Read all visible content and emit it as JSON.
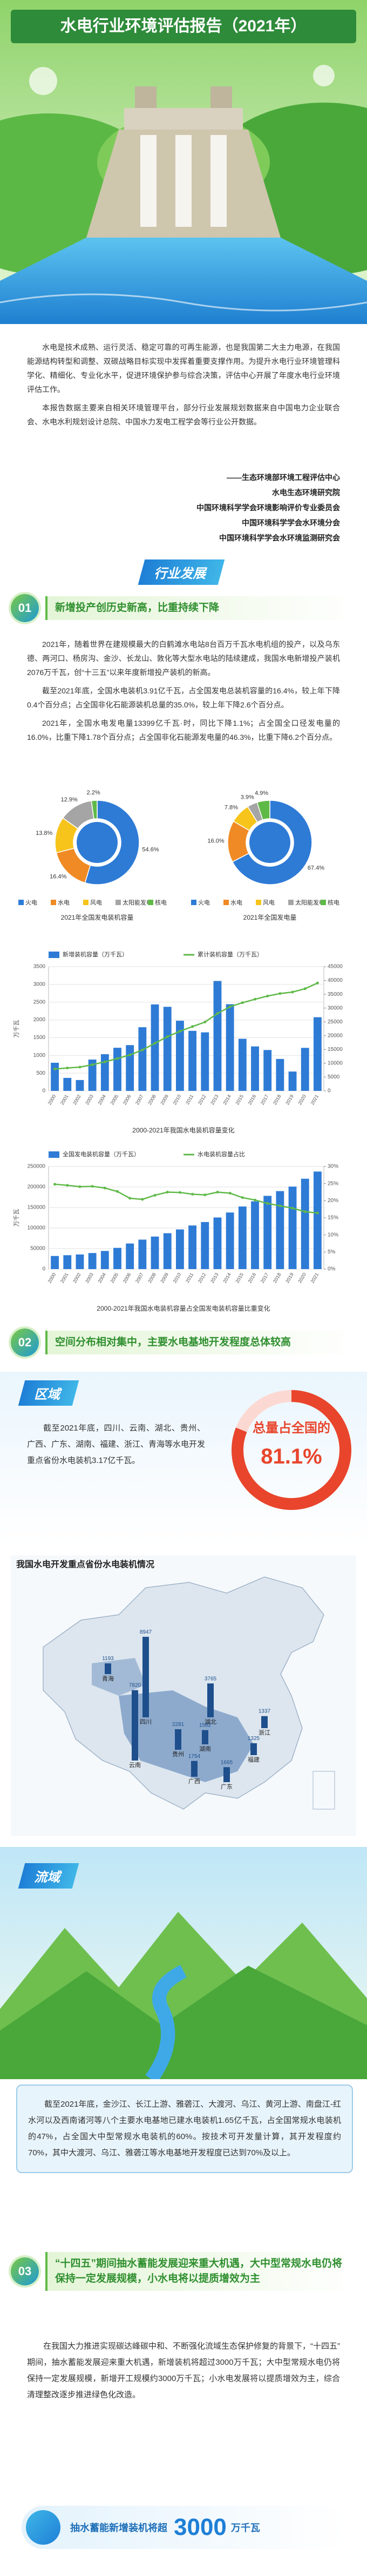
{
  "header": {
    "title": "水电行业环境评估报告（2021年）"
  },
  "intro": {
    "paragraphs": [
      "水电是技术成熟、运行灵活、稳定可靠的可再生能源，也是我国第二大主力电源，在我国能源结构转型和调整、双碳战略目标实现中发挥着重要支撑作用。为提升水电行业环境管理科学化、精细化、专业化水平，促进环境保护参与综合决策，评估中心开展了年度水电行业环境评估工作。",
      "本报告数据主要来自相关环境管理平台，部分行业发展规划数据来自中国电力企业联合会、水电水利规划设计总院、中国水力发电工程学会等行业公开数据。"
    ],
    "authors": [
      "——生态环境部环境工程评估中心",
      "水电生态环境研究院",
      "中国环境科学学会环境影响评价专业委员会",
      "中国环境科学学会水环境分会",
      "中国环境科学学会水环境监测研究会"
    ]
  },
  "section1": {
    "title": "行业发展",
    "heading": {
      "number": "01",
      "text": "新增投产创历史新高，比重持续下降"
    },
    "paragraphs": [
      "2021年，随着世界在建规模最大的白鹤滩水电站8台百万千瓦水电机组的投产，以及乌东德、两河口、杨房沟、金沙、长龙山、敦化等大型水电站的陆续建成，我国水电新增投产装机2076万千瓦，创“十三五”以来年度新增投产装机的新高。",
      "截至2021年底，全国水电装机3.91亿千瓦，占全国发电总装机容量的16.4%，较上年下降0.4个百分点；占全国非化石能源装机总量的35.0%，较上年下降2.6个百分点。",
      "2021年，全国水电发电量13399亿千瓦·时，同比下降1.1%；占全国全口径发电量的16.0%，比重下降1.78个百分点；占全国非化石能源发电量的46.3%，比重下降6.2个百分点。"
    ]
  },
  "chart_data": [
    {
      "type": "donut",
      "title": "2021年全国发电装机容量",
      "categories": [
        "火电",
        "水电",
        "风电",
        "太阳能发电",
        "核电"
      ],
      "values": [
        54.6,
        16.4,
        13.8,
        12.9,
        2.2
      ],
      "value_labels": [
        "54.6%",
        "16.4%",
        "13.8%",
        "12.9%",
        "2.2%"
      ],
      "colors": [
        "#2e7bd6",
        "#f08a24",
        "#f6c41b",
        "#a5a5a5",
        "#5fb947"
      ]
    },
    {
      "type": "donut",
      "title": "2021年全国发电量",
      "categories": [
        "火电",
        "水电",
        "风电",
        "太阳能发电",
        "核电"
      ],
      "values": [
        67.4,
        16.0,
        7.8,
        3.9,
        4.9
      ],
      "value_labels": [
        "67.4%",
        "16.0%",
        "7.8%",
        "3.9%",
        "4.9%"
      ],
      "colors": [
        "#2e7bd6",
        "#f08a24",
        "#f6c41b",
        "#a5a5a5",
        "#5fb947"
      ]
    },
    {
      "type": "bar",
      "title": "2000-2021年我国水电装机容量变化",
      "ylabel": "万千瓦",
      "categories": [
        "2000",
        "2001",
        "2002",
        "2003",
        "2004",
        "2005",
        "2006",
        "2007",
        "2008",
        "2009",
        "2010",
        "2011",
        "2012",
        "2013",
        "2014",
        "2015",
        "2016",
        "2017",
        "2018",
        "2019",
        "2020",
        "2021"
      ],
      "series": [
        {
          "name": "新增装机容量（万千瓦）",
          "type": "bar",
          "color": "#2e7bd6",
          "values": [
            793,
            366,
            306,
            883,
            1034,
            1215,
            1290,
            1794,
            2437,
            2369,
            1977,
            1692,
            1649,
            3097,
            2442,
            1468,
            1253,
            1152,
            900,
            545,
            1212,
            2076
          ]
        },
        {
          "name": "累计装机容量（万千瓦）",
          "type": "line",
          "axis": "y2",
          "color": "#5fb947",
          "values": [
            7935,
            8301,
            8607,
            9490,
            10524,
            11739,
            13029,
            14823,
            17260,
            19629,
            21606,
            23298,
            24947,
            28044,
            30486,
            31954,
            33207,
            34359,
            35259,
            35804,
            37016,
            39092
          ]
        }
      ],
      "ylim": [
        0,
        3500
      ],
      "yticks": [
        0,
        500,
        1000,
        1500,
        2000,
        2500,
        3000,
        3500
      ],
      "y2lim": [
        0,
        45000
      ],
      "y2ticks": [
        0,
        5000,
        10000,
        15000,
        20000,
        25000,
        30000,
        35000,
        40000,
        45000
      ],
      "grid": true
    },
    {
      "type": "bar",
      "title": "2000-2021年我国水电装机容量占全国发电装机容量比重变化",
      "ylabel": "万千瓦",
      "categories": [
        "2000",
        "2001",
        "2002",
        "2003",
        "2004",
        "2005",
        "2006",
        "2007",
        "2008",
        "2009",
        "2010",
        "2011",
        "2012",
        "2013",
        "2014",
        "2015",
        "2016",
        "2017",
        "2018",
        "2019",
        "2020",
        "2021"
      ],
      "series": [
        {
          "name": "全国发电装机容量（万千瓦）",
          "type": "bar",
          "color": "#2e7bd6",
          "values": [
            31932,
            33849,
            35657,
            39141,
            44239,
            51718,
            62370,
            71822,
            79273,
            87410,
            96641,
            106253,
            114676,
            125768,
            137887,
            152527,
            165051,
            178451,
            190012,
            201006,
            220204,
            237692
          ]
        },
        {
          "name": "水电装机容量占比",
          "type": "line",
          "axis": "y2",
          "color": "#5fb947",
          "values": [
            24.8,
            24.5,
            24.1,
            24.2,
            23.7,
            22.7,
            20.7,
            20.4,
            21.6,
            22.5,
            22.4,
            21.9,
            21.7,
            22.5,
            22.2,
            20.9,
            20.2,
            19.2,
            18.5,
            17.8,
            16.8,
            16.4
          ]
        }
      ],
      "ylim": [
        0,
        250000
      ],
      "yticks": [
        0,
        50000,
        100000,
        150000,
        200000,
        250000
      ],
      "y2lim": [
        0,
        30
      ],
      "y2ticks": [
        {
          "value": 0,
          "label": "0%"
        },
        {
          "value": 5,
          "label": "5%"
        },
        {
          "value": 10,
          "label": "10%"
        },
        {
          "value": 15,
          "label": "15%"
        },
        {
          "value": 20,
          "label": "20%"
        },
        {
          "value": 25,
          "label": "25%"
        },
        {
          "value": 30,
          "label": "30%"
        }
      ],
      "grid": true
    }
  ],
  "section2": {
    "heading": {
      "number": "02",
      "text": "空间分布相对集中，主要水电基地开发程度总体较高"
    },
    "region": {
      "label": "区域",
      "text": "截至2021年底，四川、云南、湖北、贵州、广西、广东、湖南、福建、浙江、青海等水电开发重点省份水电装机3.17亿千瓦。",
      "share_caption": "总量占全国的",
      "share_label": "81.1%",
      "share": 81.1
    },
    "map": {
      "title": "我国水电开发重点省份水电装机情况",
      "provinces": [
        {
          "name": "四川",
          "value": 8947
        },
        {
          "name": "云南",
          "value": 7820
        },
        {
          "name": "湖北",
          "value": 3765
        },
        {
          "name": "贵州",
          "value": 2281
        },
        {
          "name": "广西",
          "value": 1754
        },
        {
          "name": "广东",
          "value": 1665
        },
        {
          "name": "湖南",
          "value": 1582
        },
        {
          "name": "福建",
          "value": 1325
        },
        {
          "name": "浙江",
          "value": 1337
        },
        {
          "name": "青海",
          "value": 1193
        }
      ]
    },
    "basin": {
      "label": "流域",
      "text": "截至2021年底，金沙江、长江上游、雅砻江、大渡河、乌江、黄河上游、南盘江-红水河以及西南诸河等八个主要水电基地已建水电装机1.65亿千瓦，占全国常规水电装机的47%，占全国大中型常规水电装机的60%。按技术可开发量计算，其开发程度约70%，其中大渡河、乌江、雅砻江等水电基地开发程度已达到70%及以上。"
    }
  },
  "section3": {
    "heading": {
      "number": "03",
      "text": "“十四五”期间抽水蓄能发展迎来重大机遇，大中型常规水电仍将保持一定发展规模，小水电将以提质增效为主"
    },
    "paragraph": "在我国大力推进实现碳达峰碳中和、不断强化流域生态保护修复的背景下，“十四五”期间，抽水蓄能发展迎来重大机遇，新增装机将超过3000万千瓦；大中型常规水电仍将保持一定发展规模，新增开工规模约3000万千瓦；小水电发展将以提质增效为主，综合清理整改逐步推进绿色化改造。",
    "highlight": {
      "prefix": "抽水蓄能新增装机将超",
      "number": "3000",
      "unit": "万千瓦"
    }
  }
}
